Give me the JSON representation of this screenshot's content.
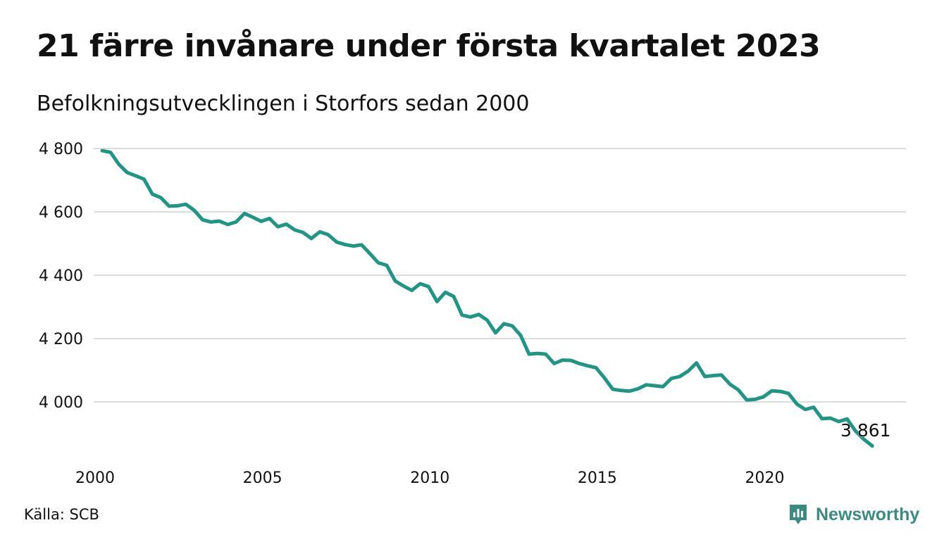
{
  "title": "21 färre invånare under första kvartalet 2023",
  "subtitle": "Befolkningsutvecklingen i Storfors sedan 2000",
  "source": "Källa: SCB",
  "brand": {
    "name": "Newsworthy",
    "color": "#3a8c82"
  },
  "colors": {
    "line": "#1f9585",
    "grid": "#dcdcdc"
  },
  "chart_data": {
    "type": "line",
    "title": "21 färre invånare under första kvartalet 2023",
    "subtitle": "Befolkningsutvecklingen i Storfors sedan 2000",
    "xlabel": "",
    "ylabel": "",
    "x_ticks": [
      2000,
      2005,
      2010,
      2015,
      2020
    ],
    "x_tick_labels": [
      "2000",
      "2005",
      "2010",
      "2015",
      "2020"
    ],
    "y_ticks": [
      4000,
      4200,
      4400,
      4600,
      4800
    ],
    "y_tick_labels": [
      "4 000",
      "4 200",
      "4 400",
      "4 600",
      "4 800"
    ],
    "xlim": [
      2000,
      2023.25
    ],
    "ylim": [
      3861,
      4800
    ],
    "grid": true,
    "end_label": "3 861",
    "series": [
      {
        "values": [
          4793,
          4788,
          4750,
          4724,
          4714,
          4703,
          4656,
          4645,
          4618,
          4619,
          4624,
          4605,
          4575,
          4568,
          4571,
          4560,
          4568,
          4595,
          4583,
          4570,
          4579,
          4553,
          4561,
          4543,
          4535,
          4516,
          4537,
          4528,
          4505,
          4497,
          4492,
          4496,
          4468,
          4439,
          4431,
          4382,
          4366,
          4352,
          4373,
          4364,
          4317,
          4346,
          4333,
          4274,
          4268,
          4276,
          4258,
          4218,
          4247,
          4240,
          4210,
          4151,
          4153,
          4151,
          4121,
          4132,
          4131,
          4121,
          4114,
          4108,
          4076,
          4040,
          4036,
          4034,
          4041,
          4054,
          4051,
          4048,
          4074,
          4080,
          4097,
          4123,
          4080,
          4083,
          4085,
          4056,
          4038,
          4006,
          4008,
          4016,
          4035,
          4033,
          4027,
          3993,
          3976,
          3983,
          3947,
          3949,
          3938,
          3946,
          3908,
          3882,
          3861
        ]
      }
    ]
  }
}
